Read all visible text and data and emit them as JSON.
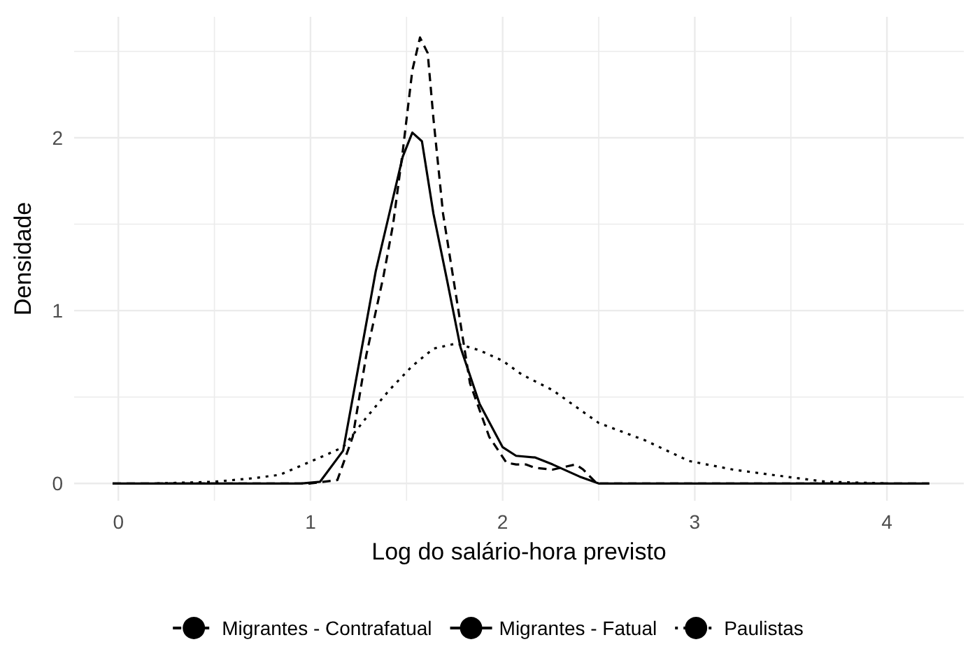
{
  "chart_data": {
    "type": "line",
    "xlabel": "Log do salário-hora previsto",
    "ylabel": "Densidade",
    "xlim": [
      -0.23,
      4.4
    ],
    "ylim": [
      -0.1,
      2.7
    ],
    "xticks": [
      0,
      {
        "value": 0.5,
        "label": null
      },
      1,
      {
        "value": 1.5,
        "label": null
      },
      2,
      {
        "value": 2.5,
        "label": null
      },
      3,
      {
        "value": 3.5,
        "label": null
      },
      4
    ],
    "yticks": [
      0,
      {
        "value": 0.5,
        "label": null
      },
      1,
      {
        "value": 1.5,
        "label": null
      },
      2,
      {
        "value": 2.5,
        "label": null
      }
    ],
    "grid": true,
    "legend": "bottom",
    "marker": "none",
    "series": [
      {
        "name": "Migrantes - Contrafatual",
        "color": "#000000",
        "line_style": "dashed",
        "x": [
          -0.03,
          0.5,
          1.0,
          1.14,
          1.22,
          1.29,
          1.38,
          1.43,
          1.48,
          1.53,
          1.57,
          1.61,
          1.64,
          1.69,
          1.76,
          1.83,
          1.93,
          2.02,
          2.07,
          2.12,
          2.17,
          2.26,
          2.38,
          2.42,
          2.49,
          3.0,
          4.22
        ],
        "values": [
          0,
          0,
          0,
          0.02,
          0.27,
          0.74,
          1.2,
          1.5,
          1.92,
          2.39,
          2.58,
          2.49,
          2.11,
          1.56,
          1.07,
          0.58,
          0.27,
          0.12,
          0.11,
          0.11,
          0.09,
          0.08,
          0.11,
          0.08,
          0,
          0,
          0
        ]
      },
      {
        "name": "Migrantes - Fatual",
        "color": "#000000",
        "line_style": "solid",
        "x": [
          -0.03,
          0.5,
          0.95,
          1.05,
          1.17,
          1.26,
          1.34,
          1.41,
          1.48,
          1.53,
          1.58,
          1.64,
          1.71,
          1.78,
          1.88,
          2.0,
          2.07,
          2.17,
          2.26,
          2.4,
          2.5,
          3.0,
          4.22
        ],
        "values": [
          0,
          0,
          0,
          0.01,
          0.19,
          0.74,
          1.23,
          1.56,
          1.89,
          2.03,
          1.98,
          1.56,
          1.18,
          0.79,
          0.46,
          0.21,
          0.16,
          0.15,
          0.11,
          0.04,
          0,
          0,
          0
        ]
      },
      {
        "name": "Paulistas",
        "color": "#000000",
        "line_style": "dotted",
        "x": [
          0.2,
          0.5,
          0.7,
          0.84,
          1.07,
          1.17,
          1.29,
          1.41,
          1.53,
          1.64,
          1.76,
          1.88,
          2.0,
          2.1,
          2.26,
          2.5,
          2.74,
          2.97,
          3.2,
          3.4,
          3.68,
          4.0
        ],
        "values": [
          0,
          0.01,
          0.03,
          0.05,
          0.16,
          0.21,
          0.38,
          0.54,
          0.68,
          0.78,
          0.81,
          0.77,
          0.71,
          0.63,
          0.54,
          0.35,
          0.25,
          0.13,
          0.08,
          0.05,
          0.01,
          0
        ]
      }
    ]
  }
}
